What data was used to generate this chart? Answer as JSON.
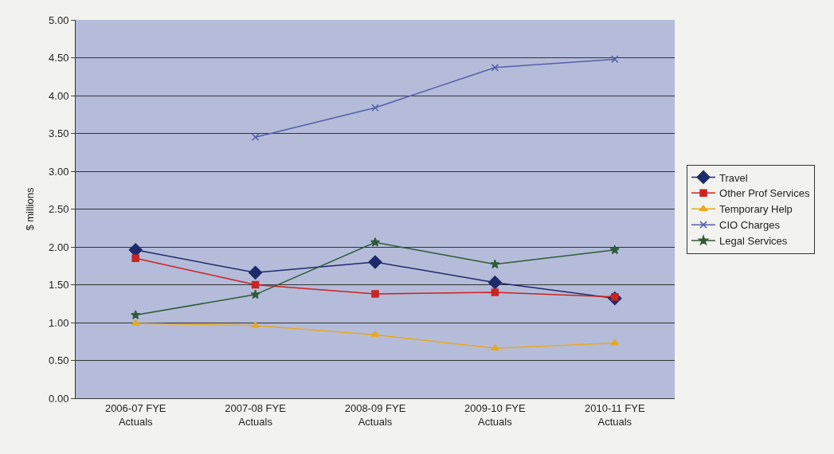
{
  "chart_data": {
    "type": "line",
    "ylabel": "$ millions",
    "categories": [
      "2006-07 FYE Actuals",
      "2007-08 FYE Actuals",
      "2008-09 FYE Actuals",
      "2009-10 FYE Actuals",
      "2010-11 FYE Actuals"
    ],
    "ylim": [
      0,
      5
    ],
    "yticks": [
      {
        "value": 0,
        "label": "0.00"
      },
      {
        "value": 0.5,
        "label": "0.50"
      },
      {
        "value": 1,
        "label": "1.00"
      },
      {
        "value": 1.5,
        "label": "1.50"
      },
      {
        "value": 2,
        "label": "2.00"
      },
      {
        "value": 2.5,
        "label": "2.50"
      },
      {
        "value": 3,
        "label": "3.00"
      },
      {
        "value": 3.5,
        "label": "3.50"
      },
      {
        "value": 4,
        "label": "4.00"
      },
      {
        "value": 4.5,
        "label": "4.50"
      },
      {
        "value": 5,
        "label": "5.00"
      }
    ],
    "grid": "y",
    "legend": "right",
    "series": [
      {
        "name": "Travel",
        "color": "#1f2a6b",
        "marker": "diamond",
        "values": [
          1.96,
          1.66,
          1.8,
          1.53,
          1.32
        ]
      },
      {
        "name": "Other Prof Services",
        "color": "#cc2222",
        "marker": "square",
        "values": [
          1.85,
          1.5,
          1.38,
          1.4,
          1.34
        ]
      },
      {
        "name": "Temporary Help",
        "color": "#e8a820",
        "marker": "triangle",
        "values": [
          0.99,
          0.96,
          0.84,
          0.66,
          0.73
        ]
      },
      {
        "name": "CIO Charges",
        "color": "#5560a8",
        "marker": "cross",
        "values": [
          null,
          3.45,
          3.84,
          4.37,
          4.48
        ]
      },
      {
        "name": "Legal Services",
        "color": "#2f5a3a",
        "marker": "star",
        "values": [
          1.1,
          1.37,
          2.06,
          1.77,
          1.96
        ]
      }
    ]
  }
}
